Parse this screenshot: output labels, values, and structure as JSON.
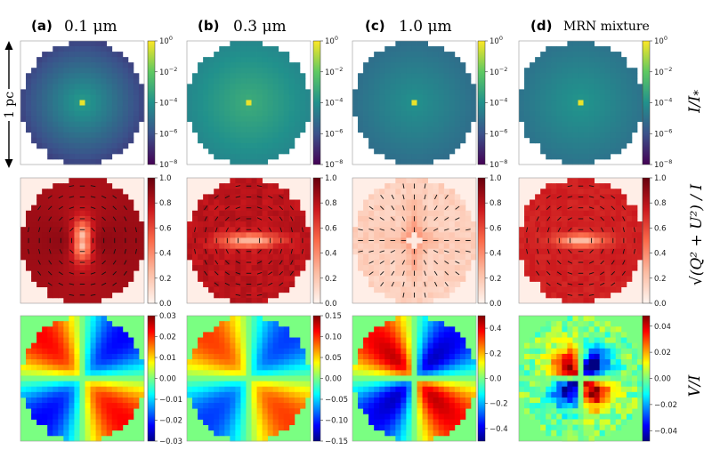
{
  "figure": {
    "panels": [
      {
        "id": "a",
        "tag": "(a)",
        "label": "0.1 μm"
      },
      {
        "id": "b",
        "tag": "(b)",
        "label": "0.3 μm"
      },
      {
        "id": "c",
        "tag": "(c)",
        "label": "1.0 μm"
      },
      {
        "id": "d",
        "tag": "(d)",
        "label": "MRN mixture"
      }
    ],
    "scale_bar_label": "1 pc",
    "row_labels": [
      "I/I*",
      "√(Q²+U²)/I",
      "V/I"
    ]
  },
  "chart_data": [
    {
      "type": "heatmap",
      "row": "intensity",
      "colormap": "viridis",
      "scale": "log",
      "colorbar_ticks": [
        {
          "label": "10^0",
          "sup": "0",
          "value": 1
        },
        {
          "label": "10^-2",
          "sup": "−2",
          "value": 0.01
        },
        {
          "label": "10^-4",
          "sup": "−4",
          "value": 0.0001
        },
        {
          "label": "10^-6",
          "sup": "−6",
          "value": 1e-06
        },
        {
          "label": "10^-8",
          "sup": "−8",
          "value": 1e-08
        }
      ]
    },
    {
      "type": "heatmap",
      "row": "polarization_degree",
      "colormap": "reds",
      "colorbar_ticks_labels": [
        "1.0",
        "0.8",
        "0.6",
        "0.4",
        "0.2",
        "0.0"
      ],
      "ranges": [
        [
          0,
          1
        ],
        [
          0,
          1
        ],
        [
          0,
          1
        ],
        [
          0,
          1
        ]
      ],
      "overlay": "polarization vectors"
    },
    {
      "type": "heatmap",
      "row": "circular_polarization",
      "colormap": "jet",
      "colorbar_ticks_labels": [
        [
          "0.03",
          "0.02",
          "0.01",
          "0.00",
          "−0.01",
          "−0.02",
          "−0.03"
        ],
        [
          "0.15",
          "0.10",
          "0.05",
          "0.00",
          "−0.05",
          "−0.10",
          "−0.15"
        ],
        [
          "0.4",
          "0.2",
          "0.0",
          "−0.2",
          "−0.4"
        ],
        [
          "0.04",
          "0.02",
          "0.00",
          "−0.02",
          "−0.04"
        ]
      ],
      "ranges": [
        [
          -0.03,
          0.03
        ],
        [
          -0.15,
          0.15
        ],
        [
          -0.5,
          0.5
        ],
        [
          -0.048,
          0.048
        ]
      ]
    }
  ]
}
